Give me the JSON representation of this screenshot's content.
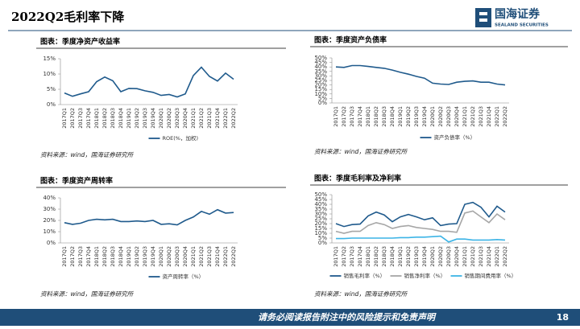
{
  "page": {
    "title": "2022Q2毛利率下降",
    "logo_name": "国海证券",
    "logo_en": "SEALAND SECURITIES",
    "footer": "请务必阅读报告附注中的风险提示和免责声明",
    "page_number": "18"
  },
  "chart_data": [
    {
      "type": "line",
      "title": "图表：季度净资产收益率",
      "source": "资料来源：wind，国海证券研究所",
      "categories": [
        "2017Q1",
        "2017Q2",
        "2017Q3",
        "2017Q4",
        "2018Q1",
        "2018Q2",
        "2018Q3",
        "2018Q4",
        "2019Q1",
        "2019Q2",
        "2019Q3",
        "2019Q4",
        "2020Q1",
        "2020Q2",
        "2020Q3",
        "2020Q4",
        "2021Q1",
        "2021Q2",
        "2021Q3",
        "2021Q4",
        "2022Q1",
        "2022Q2"
      ],
      "series": [
        {
          "name": "ROE(%，加权)",
          "color": "#1f5a8c",
          "values": [
            3.8,
            2.7,
            3.5,
            4.2,
            7.5,
            9.0,
            7.8,
            4.2,
            5.3,
            5.2,
            4.5,
            4.0,
            3.0,
            3.3,
            2.5,
            3.5,
            9.5,
            12.2,
            9.2,
            7.7,
            10.3,
            8.3
          ]
        }
      ],
      "ylim": [
        0,
        15
      ],
      "yticks": [
        {
          "value": 0,
          "label": "0%"
        },
        {
          "value": 5,
          "label": "5%"
        },
        {
          "value": 10,
          "label": "10%"
        },
        {
          "value": 15,
          "label": "15%"
        }
      ]
    },
    {
      "type": "line",
      "title": "图表：季度资产负债率",
      "source": "资料来源：wind，国海证券研究所",
      "categories": [
        "2017Q1",
        "2017Q2",
        "2017Q3",
        "2017Q4",
        "2018Q1",
        "2018Q2",
        "2018Q3",
        "2018Q4",
        "2019Q1",
        "2019Q2",
        "2019Q3",
        "2019Q4",
        "2020Q1",
        "2020Q2",
        "2020Q3",
        "2020Q4",
        "2021Q1",
        "2021Q2",
        "2021Q3",
        "2021Q4",
        "2022Q1",
        "2022Q2"
      ],
      "series": [
        {
          "name": "资产负债率（%）",
          "color": "#1f5a8c",
          "values": [
            40,
            39.5,
            41.5,
            41.5,
            40.5,
            39.5,
            38.5,
            36.5,
            34,
            32,
            29.5,
            27.5,
            22,
            21,
            20.5,
            23,
            24,
            24.5,
            23,
            23,
            21,
            20
          ]
        }
      ],
      "ylim": [
        0,
        50
      ],
      "yticks": [
        {
          "value": 0,
          "label": "0%"
        },
        {
          "value": 5,
          "label": "5%"
        },
        {
          "value": 10,
          "label": "10%"
        },
        {
          "value": 15,
          "label": "15%"
        },
        {
          "value": 20,
          "label": "20%"
        },
        {
          "value": 25,
          "label": "25%"
        },
        {
          "value": 30,
          "label": "30%"
        },
        {
          "value": 35,
          "label": "35%"
        },
        {
          "value": 40,
          "label": "40%"
        },
        {
          "value": 45,
          "label": "45%"
        },
        {
          "value": 50,
          "label": "50%"
        }
      ]
    },
    {
      "type": "line",
      "title": "图表：季度资产周转率",
      "source": "资料来源：wind，国海证券研究所",
      "categories": [
        "2017Q1",
        "2017Q2",
        "2017Q3",
        "2017Q4",
        "2018Q1",
        "2018Q2",
        "2018Q3",
        "2018Q4",
        "2019Q1",
        "2019Q2",
        "2019Q3",
        "2019Q4",
        "2020Q1",
        "2020Q2",
        "2020Q3",
        "2020Q4",
        "2021Q1",
        "2021Q2",
        "2021Q3",
        "2021Q4",
        "2022Q1",
        "2022Q2"
      ],
      "series": [
        {
          "name": "资产周转率（%）",
          "color": "#1f5a8c",
          "values": [
            18,
            16.5,
            17.5,
            20,
            21,
            20.5,
            21,
            19,
            19,
            19.5,
            19,
            20,
            16.5,
            17,
            16,
            20,
            23,
            28,
            25.5,
            29.5,
            26.5,
            27
          ]
        }
      ],
      "ylim": [
        0,
        40
      ],
      "yticks": [
        {
          "value": 0,
          "label": "0%"
        },
        {
          "value": 10,
          "label": "10%"
        },
        {
          "value": 20,
          "label": "20%"
        },
        {
          "value": 30,
          "label": "30%"
        },
        {
          "value": 40,
          "label": "40%"
        }
      ]
    },
    {
      "type": "line",
      "title": "图表：季度毛利率及净利率",
      "source": "资料来源：wind，国海证券研究所",
      "categories": [
        "2017Q1",
        "2017Q2",
        "2017Q3",
        "2017Q4",
        "2018Q1",
        "2018Q2",
        "2018Q3",
        "2018Q4",
        "2019Q1",
        "2019Q2",
        "2019Q3",
        "2019Q4",
        "2020Q1",
        "2020Q2",
        "2020Q3",
        "2020Q4",
        "2021Q1",
        "2021Q2",
        "2021Q3",
        "2021Q4",
        "2022Q1",
        "2022Q2"
      ],
      "series": [
        {
          "name": "销售毛利率（%）",
          "color": "#1f5a8c",
          "values": [
            20,
            17,
            19,
            19.5,
            28,
            32,
            29,
            22,
            27,
            29.5,
            27,
            24,
            26,
            18,
            19.5,
            20,
            40,
            42,
            37,
            27,
            38,
            32
          ]
        },
        {
          "name": "销售净利率（%）",
          "color": "#a6a6a6",
          "values": [
            12,
            10,
            12,
            12,
            18,
            21,
            19,
            15,
            17,
            18,
            16,
            15,
            14,
            12,
            12,
            11,
            31,
            33,
            27,
            21,
            30,
            24
          ]
        },
        {
          "name": "销售期间费用率（%）",
          "color": "#3cb4e6",
          "values": [
            4.5,
            4.5,
            5,
            5,
            5,
            5,
            5,
            5,
            5.5,
            5.5,
            6,
            6,
            6.5,
            7,
            1,
            4,
            4,
            3,
            3,
            3,
            3.5,
            3
          ]
        }
      ],
      "ylim": [
        0,
        50
      ],
      "yticks": [
        {
          "value": 0,
          "label": "0%"
        },
        {
          "value": 5,
          "label": "5%"
        },
        {
          "value": 10,
          "label": "10%"
        },
        {
          "value": 15,
          "label": "15%"
        },
        {
          "value": 20,
          "label": "20%"
        },
        {
          "value": 25,
          "label": "25%"
        },
        {
          "value": 30,
          "label": "30%"
        },
        {
          "value": 35,
          "label": "35%"
        },
        {
          "value": 40,
          "label": "40%"
        },
        {
          "value": 45,
          "label": "45%"
        },
        {
          "value": 50,
          "label": "50%"
        }
      ]
    }
  ]
}
